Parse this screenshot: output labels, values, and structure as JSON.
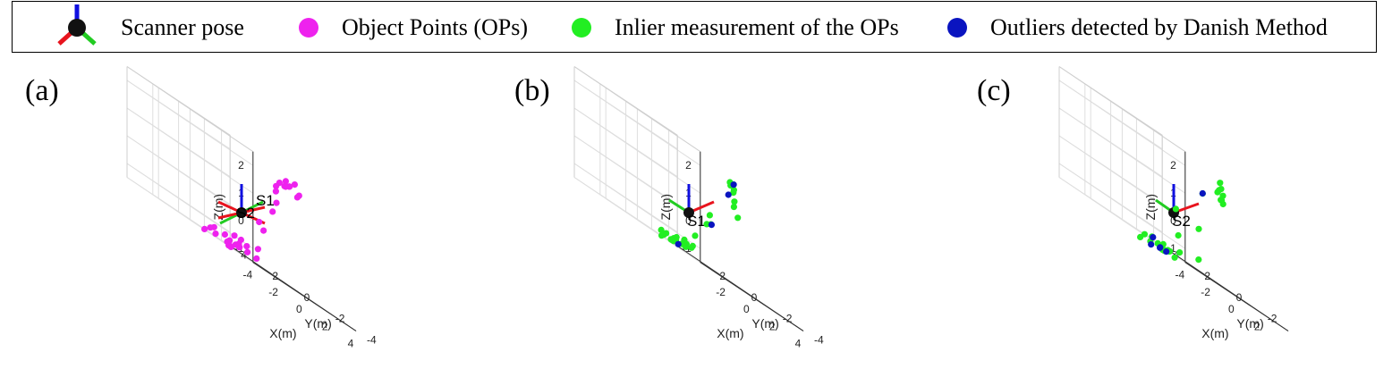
{
  "legend": {
    "scanner_pose": "Scanner pose",
    "object_points": "Object Points (OPs)",
    "inliers": "Inlier measurement of the OPs",
    "outliers": "Outliers detected by Danish Method",
    "colors": {
      "object_points": "#ee22ee",
      "inliers": "#22ee22",
      "outliers": "#0a14c0",
      "pose_x": "#e8141e",
      "pose_y": "#22cc22",
      "pose_z": "#1010e0"
    }
  },
  "chart_data": [
    {
      "type": "scatter3d",
      "panel": "(a)",
      "xlabel": "X(m)",
      "ylabel": "Y(m)",
      "zlabel": "Z(m)",
      "xlim": [
        -4,
        4
      ],
      "ylim": [
        -4,
        4
      ],
      "zlim": [
        -1.5,
        2.5
      ],
      "x_ticks": [
        "-4",
        "-2",
        "0",
        "2",
        "4"
      ],
      "y_ticks": [
        "-4",
        "-2",
        "0",
        "2",
        "4"
      ],
      "z_ticks": [
        "-1",
        "0",
        "1",
        "2"
      ],
      "grid": true,
      "scanner_labels": [
        "S1",
        "S2"
      ],
      "series": [
        {
          "name": "Object Points (OPs)",
          "color": "#ee22ee",
          "points": [
            [
              1.5,
              -1.5,
              2.0
            ],
            [
              2.0,
              -1.4,
              2.1
            ],
            [
              2.5,
              -1.5,
              1.9
            ],
            [
              3.0,
              -1.2,
              2.0
            ],
            [
              1.8,
              -1.9,
              2.3
            ],
            [
              2.7,
              -0.6,
              2.2
            ],
            [
              0.5,
              -2.0,
              2.0
            ],
            [
              -0.5,
              -2.6,
              1.8
            ],
            [
              -1.5,
              -3.2,
              0.8
            ],
            [
              -2.3,
              -3.0,
              0.1
            ],
            [
              -2.2,
              -3.2,
              -0.1
            ],
            [
              -3.0,
              -3.5,
              -0.9
            ],
            [
              1.2,
              -1.2,
              1.6
            ],
            [
              1.0,
              -1.4,
              1.2
            ],
            [
              1.4,
              -1.9,
              2.1
            ],
            [
              2.2,
              -1.0,
              2.0
            ],
            [
              -1.2,
              -0.6,
              -1.3
            ],
            [
              -0.4,
              -0.2,
              -1.3
            ],
            [
              0.8,
              0.8,
              -1.3
            ],
            [
              1.5,
              1.4,
              -1.2
            ],
            [
              0.4,
              1.0,
              -1.5
            ],
            [
              -0.2,
              0.6,
              -1.3
            ],
            [
              0.2,
              0.2,
              -1.0
            ],
            [
              1.2,
              1.8,
              -1.5
            ],
            [
              -0.8,
              -0.2,
              -1.0
            ],
            [
              2.2,
              2.6,
              -1.4
            ],
            [
              1.9,
              0.6,
              -1.3
            ],
            [
              2.6,
              1.8,
              -1.1
            ],
            [
              2.9,
              2.0,
              -1.3
            ],
            [
              0.6,
              1.4,
              -1.4
            ],
            [
              1.4,
              2.2,
              -1.2
            ],
            [
              1.9,
              3.2,
              -1.4
            ],
            [
              0.8,
              2.4,
              -1.2
            ],
            [
              -0.1,
              1.9,
              -1.3
            ],
            [
              0.3,
              2.6,
              -1.5
            ]
          ]
        }
      ]
    },
    {
      "type": "scatter3d",
      "panel": "(b)",
      "xlabel": "X(m)",
      "ylabel": "Y(m)",
      "zlabel": "Z(m)",
      "xlim": [
        -4,
        4
      ],
      "ylim": [
        -4,
        4
      ],
      "zlim": [
        -1.5,
        2.5
      ],
      "x_ticks": [
        "-2",
        "0",
        "2",
        "4"
      ],
      "y_ticks": [
        "-4",
        "-2",
        "0",
        "2"
      ],
      "z_ticks": [
        "-1",
        "0",
        "1",
        "2"
      ],
      "grid": true,
      "scanner_labels": [
        "S1"
      ],
      "series": [
        {
          "name": "Inlier measurement of the OPs",
          "color": "#22ee22",
          "points": [
            [
              0.9,
              -2.1,
              2.1
            ],
            [
              1.5,
              -1.6,
              1.8
            ],
            [
              1.7,
              -1.5,
              1.5
            ],
            [
              1.3,
              -1.8,
              1.3
            ],
            [
              1.6,
              -1.8,
              1.0
            ],
            [
              2.4,
              -0.9,
              1.9
            ],
            [
              -0.3,
              -2.9,
              2.0
            ],
            [
              -0.6,
              -3.1,
              2.1
            ],
            [
              3.3,
              1.3,
              0.1
            ],
            [
              3.7,
              1.7,
              0.4
            ],
            [
              4.2,
              2.3,
              0.0
            ],
            [
              4.4,
              3.2,
              -0.7
            ],
            [
              -3.0,
              -2.7,
              -1.1
            ],
            [
              -2.1,
              -0.9,
              -1.3
            ],
            [
              -1.2,
              -0.8,
              -1.3
            ],
            [
              -0.8,
              -0.2,
              -1.3
            ],
            [
              -0.4,
              -0.5,
              -1.2
            ],
            [
              0.2,
              0.4,
              -1.2
            ],
            [
              0.7,
              0.8,
              -1.3
            ],
            [
              1.2,
              1.2,
              -1.2
            ],
            [
              1.6,
              1.6,
              -1.1
            ],
            [
              1.9,
              1.7,
              -1.2
            ],
            [
              0.9,
              1.7,
              -1.4
            ],
            [
              0.2,
              1.3,
              -1.4
            ],
            [
              -0.1,
              1.5,
              -1.4
            ],
            [
              2.5,
              3.0,
              -1.3
            ],
            [
              1.8,
              3.2,
              -1.5
            ],
            [
              3.2,
              3.4,
              -1.2
            ],
            [
              -0.6,
              0.6,
              -1.4
            ],
            [
              -0.3,
              1.2,
              -1.3
            ],
            [
              0.3,
              2.0,
              -1.3
            ]
          ]
        },
        {
          "name": "Outliers detected by Danish Method",
          "color": "#0a14c0",
          "points": [
            [
              0.3,
              -2.6,
              2.1
            ],
            [
              1.6,
              -1.2,
              1.6
            ],
            [
              3.6,
              1.5,
              0.1
            ],
            [
              0.4,
              1.0,
              -1.4
            ]
          ]
        }
      ]
    },
    {
      "type": "scatter3d",
      "panel": "(c)",
      "xlabel": "X(m)",
      "ylabel": "Y(m)",
      "zlabel": "Z(m)",
      "xlim": [
        -4,
        4
      ],
      "ylim": [
        -4,
        4
      ],
      "zlim": [
        -1.5,
        2.5
      ],
      "x_ticks": [
        "-4",
        "-2",
        "0",
        "2"
      ],
      "y_ticks": [
        "-2",
        "0",
        "2",
        "4"
      ],
      "z_ticks": [
        "-1",
        "0",
        "1",
        "2"
      ],
      "grid": true,
      "scanner_labels": [
        "S2"
      ],
      "series": [
        {
          "name": "Inlier measurement of the OPs",
          "color": "#22ee22",
          "points": [
            [
              1.4,
              -1.8,
              2.2
            ],
            [
              1.6,
              -1.7,
              2.0
            ],
            [
              1.8,
              -1.4,
              1.9
            ],
            [
              1.5,
              -1.9,
              1.8
            ],
            [
              1.7,
              -1.6,
              1.6
            ],
            [
              2.0,
              -1.5,
              1.5
            ],
            [
              2.5,
              -1.0,
              1.6
            ],
            [
              1.2,
              -1.8,
              1.8
            ],
            [
              -1.3,
              -2.9,
              1.4
            ],
            [
              -3.5,
              -3.0,
              0.2
            ],
            [
              -2.7,
              -2.5,
              -0.7
            ],
            [
              5.0,
              2.5,
              0.0
            ],
            [
              -3.2,
              -1.9,
              -1.6
            ],
            [
              -2.3,
              -1.6,
              -1.5
            ],
            [
              -1.1,
              -0.3,
              -1.6
            ],
            [
              0.2,
              0.1,
              -1.6
            ],
            [
              0.7,
              0.2,
              -1.3
            ],
            [
              0.4,
              0.7,
              -1.5
            ],
            [
              0.9,
              1.4,
              -1.4
            ],
            [
              1.9,
              1.8,
              -1.5
            ],
            [
              2.4,
              2.5,
              -1.6
            ],
            [
              3.1,
              3.2,
              -1.6
            ],
            [
              3.8,
              3.7,
              -1.6
            ],
            [
              0.6,
              1.5,
              -1.5
            ],
            [
              -0.1,
              1.4,
              -1.6
            ],
            [
              -0.4,
              1.8,
              -1.7
            ],
            [
              1.0,
              2.2,
              -1.4
            ],
            [
              1.4,
              3.0,
              -1.5
            ],
            [
              2.3,
              0.3,
              -1.1
            ]
          ]
        },
        {
          "name": "Outliers detected by Danish Method",
          "color": "#0a14c0",
          "points": [
            [
              -0.2,
              -2.0,
              1.4
            ],
            [
              -0.7,
              0.3,
              -1.6
            ],
            [
              0.2,
              1.6,
              -1.7
            ],
            [
              1.2,
              2.3,
              -1.4
            ],
            [
              2.6,
              2.6,
              -1.6
            ],
            [
              3.1,
              3.4,
              -1.6
            ]
          ]
        }
      ]
    }
  ]
}
